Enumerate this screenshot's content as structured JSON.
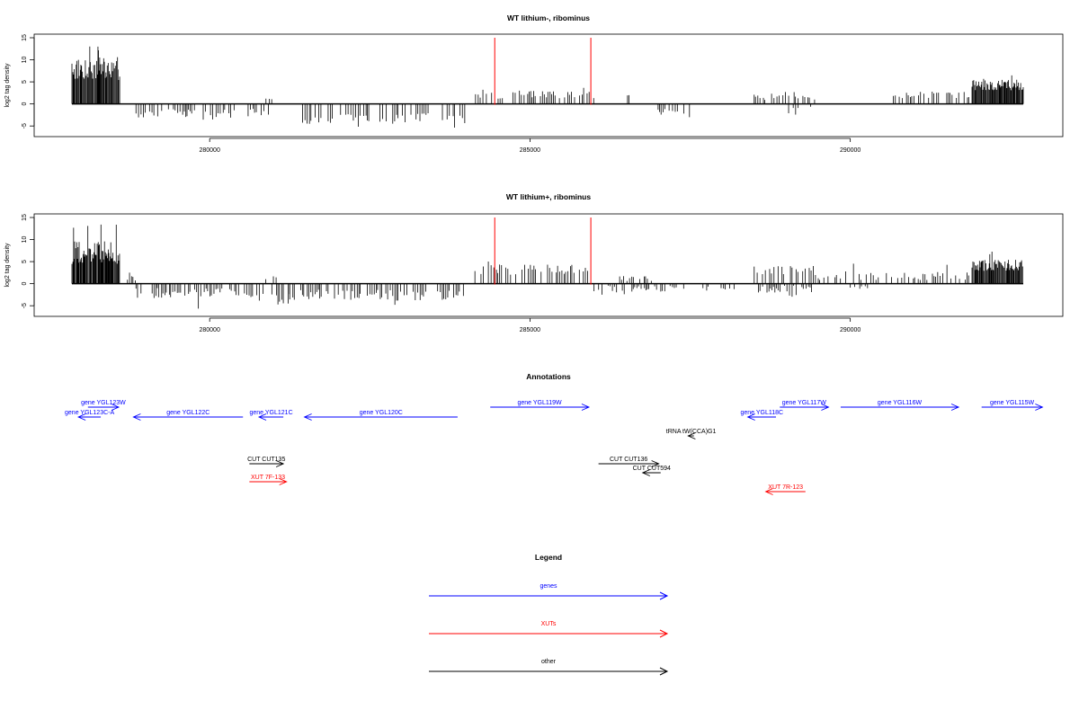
{
  "chart_data": [
    {
      "type": "bar",
      "title": "WT lithium-, ribominus",
      "ylabel": "log2 tag density",
      "xlabel": "",
      "xlim": [
        277300,
        292700
      ],
      "ylim": [
        -7,
        15
      ],
      "xticks": [
        280000,
        285000,
        290000
      ],
      "yticks": [
        -5,
        0,
        5,
        10,
        15
      ],
      "xtick_labels": [
        "280000",
        "285000",
        "290000"
      ],
      "ytick_labels": [
        "-5",
        "0",
        "5",
        "10",
        "15"
      ],
      "markers": [
        284450,
        285950
      ],
      "segments": [
        {
          "start": 277850,
          "end": 278600,
          "dir": 1,
          "mean": 8,
          "var": 2.6,
          "peak": 14.3
        },
        {
          "start": 278600,
          "end": 278850,
          "dir": 0,
          "mean": 0,
          "var": 0,
          "peak": 0
        },
        {
          "start": 278850,
          "end": 280400,
          "dir": -1,
          "mean": 2.4,
          "var": 1.2,
          "peak": 4.8
        },
        {
          "start": 280600,
          "end": 280950,
          "dir": -1,
          "mean": 2.0,
          "var": 1.0,
          "peak": 3.5
        },
        {
          "start": 280850,
          "end": 281000,
          "dir": 1,
          "mean": 1.5,
          "var": 0.8,
          "peak": 2.5
        },
        {
          "start": 281450,
          "end": 284000,
          "dir": -1,
          "mean": 3.3,
          "var": 1.2,
          "peak": 5.8
        },
        {
          "start": 284150,
          "end": 286000,
          "dir": 1,
          "mean": 2.2,
          "var": 1.0,
          "peak": 3.9
        },
        {
          "start": 286500,
          "end": 286550,
          "dir": 1,
          "mean": 2.0,
          "var": 0.2,
          "peak": 2.0
        },
        {
          "start": 287000,
          "end": 287500,
          "dir": -1,
          "mean": 2.0,
          "var": 1.0,
          "peak": 3.0
        },
        {
          "start": 288500,
          "end": 289500,
          "dir": 1,
          "mean": 1.8,
          "var": 0.9,
          "peak": 3.2
        },
        {
          "start": 289000,
          "end": 289400,
          "dir": -1,
          "mean": 1.5,
          "var": 1.0,
          "peak": 3.8
        },
        {
          "start": 290600,
          "end": 291900,
          "dir": 1,
          "mean": 2.2,
          "var": 0.9,
          "peak": 4.0
        },
        {
          "start": 291900,
          "end": 292700,
          "dir": 1,
          "mean": 4.3,
          "var": 1.2,
          "peak": 6.5
        }
      ]
    },
    {
      "type": "bar",
      "title": "WT lithium+, ribominus",
      "ylabel": "log2 tag density",
      "xlabel": "",
      "xlim": [
        277300,
        292700
      ],
      "ylim": [
        -7,
        15
      ],
      "xticks": [
        280000,
        285000,
        290000
      ],
      "yticks": [
        -5,
        0,
        5,
        10,
        15
      ],
      "xtick_labels": [
        "280000",
        "285000",
        "290000"
      ],
      "ytick_labels": [
        "-5",
        "0",
        "5",
        "10",
        "15"
      ],
      "markers": [
        284450,
        285950
      ],
      "segments": [
        {
          "start": 277850,
          "end": 278600,
          "dir": 1,
          "mean": 7,
          "var": 2.6,
          "peak": 14.0
        },
        {
          "start": 278600,
          "end": 278850,
          "dir": 1,
          "mean": 1.2,
          "var": 0.8,
          "peak": 3.0
        },
        {
          "start": 278850,
          "end": 280550,
          "dir": -1,
          "mean": 2.2,
          "var": 1.2,
          "peak": 6.0
        },
        {
          "start": 280550,
          "end": 281250,
          "dir": -1,
          "mean": 3.2,
          "var": 1.5,
          "peak": 6.5
        },
        {
          "start": 280850,
          "end": 281050,
          "dir": 1,
          "mean": 1.3,
          "var": 0.6,
          "peak": 2.5
        },
        {
          "start": 281250,
          "end": 284000,
          "dir": -1,
          "mean": 2.6,
          "var": 1.3,
          "peak": 5.5
        },
        {
          "start": 284100,
          "end": 285950,
          "dir": 1,
          "mean": 3.2,
          "var": 1.2,
          "peak": 5.7
        },
        {
          "start": 286000,
          "end": 287400,
          "dir": -1,
          "mean": 1.2,
          "var": 0.8,
          "peak": 2.6
        },
        {
          "start": 286400,
          "end": 286950,
          "dir": 1,
          "mean": 1.2,
          "var": 0.6,
          "peak": 2.8
        },
        {
          "start": 287700,
          "end": 288200,
          "dir": -1,
          "mean": 0.8,
          "var": 0.5,
          "peak": 1.6
        },
        {
          "start": 288500,
          "end": 289500,
          "dir": 1,
          "mean": 2.8,
          "var": 1.2,
          "peak": 6.0
        },
        {
          "start": 288500,
          "end": 289400,
          "dir": -1,
          "mean": 1.2,
          "var": 0.8,
          "peak": 3.0
        },
        {
          "start": 289500,
          "end": 291900,
          "dir": 1,
          "mean": 1.8,
          "var": 1.0,
          "peak": 4.8
        },
        {
          "start": 290000,
          "end": 290300,
          "dir": -1,
          "mean": 0.8,
          "var": 0.4,
          "peak": 1.5
        },
        {
          "start": 291900,
          "end": 292700,
          "dir": 1,
          "mean": 4.2,
          "var": 1.3,
          "peak": 7.6
        }
      ]
    }
  ],
  "annotations": {
    "title": "Annotations",
    "xlim": [
      277300,
      292700
    ],
    "colors": {
      "gene": "#0000ff",
      "xut": "#ff0000",
      "other": "#000000"
    },
    "items": [
      {
        "label": "gene YGL123W",
        "kind": "gene",
        "start": 278100,
        "end": 278580,
        "strand": "+",
        "row": 0
      },
      {
        "label": "gene YGL123C-A",
        "kind": "gene",
        "start": 277950,
        "end": 278300,
        "strand": "-",
        "row": 1
      },
      {
        "label": "gene YGL122C",
        "kind": "gene",
        "start": 278810,
        "end": 280520,
        "strand": "-",
        "row": 1
      },
      {
        "label": "gene YGL121C",
        "kind": "gene",
        "start": 280770,
        "end": 281150,
        "strand": "-",
        "row": 1
      },
      {
        "label": "gene YGL120C",
        "kind": "gene",
        "start": 281480,
        "end": 283870,
        "strand": "-",
        "row": 1
      },
      {
        "label": "gene YGL119W",
        "kind": "gene",
        "start": 284380,
        "end": 285920,
        "strand": "+",
        "row": 0
      },
      {
        "label": "gene YGL117W",
        "kind": "gene",
        "start": 288900,
        "end": 289660,
        "strand": "+",
        "row": 0
      },
      {
        "label": "gene YGL118C",
        "kind": "gene",
        "start": 288400,
        "end": 288840,
        "strand": "-",
        "row": 1
      },
      {
        "label": "gene YGL116W",
        "kind": "gene",
        "start": 289850,
        "end": 291690,
        "strand": "+",
        "row": 0
      },
      {
        "label": "gene YGL115W",
        "kind": "gene",
        "start": 292050,
        "end": 293000,
        "strand": "+",
        "row": 0
      },
      {
        "label": "tRNA tW(CCA)G1",
        "kind": "other",
        "start": 287470,
        "end": 287560,
        "strand": "-",
        "row": 2
      },
      {
        "label": "CUT CUT135",
        "kind": "other",
        "start": 280620,
        "end": 281150,
        "strand": "+",
        "row": 3
      },
      {
        "label": "CUT CUT136",
        "kind": "other",
        "start": 286070,
        "end": 287010,
        "strand": "+",
        "row": 3
      },
      {
        "label": "CUT CUT594",
        "kind": "other",
        "start": 286760,
        "end": 287040,
        "strand": "-",
        "row": 4
      },
      {
        "label": "XUT 7F-133",
        "kind": "xut",
        "start": 280620,
        "end": 281200,
        "strand": "+",
        "row": 5
      },
      {
        "label": "XUT 7R-123",
        "kind": "xut",
        "start": 288680,
        "end": 289300,
        "strand": "-",
        "row": 6
      }
    ]
  },
  "legend": {
    "title": "Legend",
    "entries": [
      {
        "label": "genes",
        "color": "#0000ff"
      },
      {
        "label": "XUTs",
        "color": "#ff0000"
      },
      {
        "label": "other",
        "color": "#000000"
      }
    ]
  }
}
